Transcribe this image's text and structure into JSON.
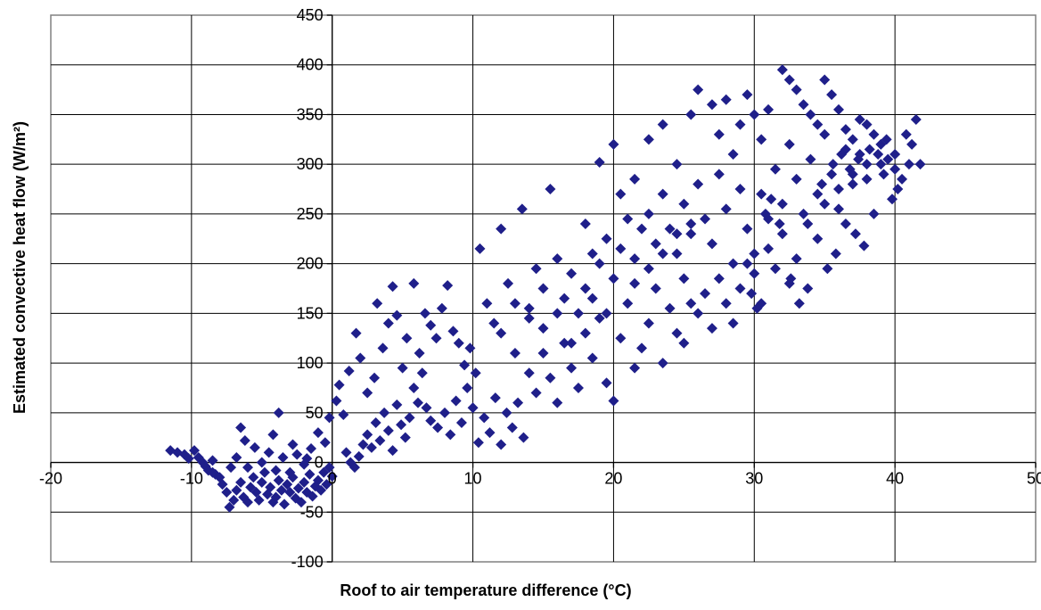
{
  "chart_data": {
    "type": "scatter",
    "xlabel": "Roof to air temperature difference (°C)",
    "ylabel": "Estimated convective heat flow (W/m²)",
    "xlim": [
      -20,
      50
    ],
    "ylim": [
      -100,
      450
    ],
    "x_ticks": [
      -20,
      -10,
      0,
      10,
      20,
      30,
      40,
      50
    ],
    "y_ticks": [
      -100,
      -50,
      0,
      50,
      100,
      150,
      200,
      250,
      300,
      350,
      400,
      450
    ],
    "x_tick_labels": [
      "-20",
      "-10",
      "0",
      "10",
      "20",
      "30",
      "40",
      "50"
    ],
    "y_tick_labels": [
      "-100",
      "-50",
      "0",
      "50",
      "100",
      "150",
      "200",
      "250",
      "300",
      "350",
      "400",
      "450"
    ],
    "grid": true,
    "colors": {
      "marker": "#1f1f8a",
      "grid": "#000000",
      "frame": "#808080"
    },
    "series": [
      {
        "marker": "diamond",
        "points": [
          [
            -11.5,
            12
          ],
          [
            -11.0,
            10
          ],
          [
            -10.5,
            8
          ],
          [
            -10.2,
            4
          ],
          [
            -9.8,
            12
          ],
          [
            -9.5,
            5
          ],
          [
            -9.2,
            0
          ],
          [
            -9.0,
            -4
          ],
          [
            -8.8,
            -8
          ],
          [
            -8.5,
            2
          ],
          [
            -8.3,
            -12
          ],
          [
            -8.0,
            -15
          ],
          [
            -7.8,
            -22
          ],
          [
            -7.5,
            -30
          ],
          [
            -7.3,
            -45
          ],
          [
            -7.0,
            -38
          ],
          [
            -6.8,
            -28
          ],
          [
            -6.5,
            -20
          ],
          [
            -6.3,
            -35
          ],
          [
            -6.0,
            -40
          ],
          [
            -5.8,
            -25
          ],
          [
            -5.6,
            -15
          ],
          [
            -5.4,
            -30
          ],
          [
            -5.2,
            -38
          ],
          [
            -5.0,
            -20
          ],
          [
            -4.8,
            -10
          ],
          [
            -4.6,
            -32
          ],
          [
            -4.4,
            -25
          ],
          [
            -4.2,
            -40
          ],
          [
            -4.0,
            -35
          ],
          [
            -3.8,
            -18
          ],
          [
            -3.6,
            -28
          ],
          [
            -3.4,
            -42
          ],
          [
            -3.2,
            -22
          ],
          [
            -3.0,
            -30
          ],
          [
            -2.8,
            -15
          ],
          [
            -2.6,
            -36
          ],
          [
            -2.4,
            -26
          ],
          [
            -2.2,
            -40
          ],
          [
            -2.0,
            -20
          ],
          [
            -1.8,
            -30
          ],
          [
            -1.6,
            -12
          ],
          [
            -1.4,
            -34
          ],
          [
            -1.2,
            -24
          ],
          [
            -1.0,
            -18
          ],
          [
            -0.8,
            -28
          ],
          [
            -0.6,
            -10
          ],
          [
            -0.4,
            -22
          ],
          [
            -0.2,
            -5
          ],
          [
            0.0,
            -14
          ],
          [
            -6.5,
            35
          ],
          [
            -6.2,
            22
          ],
          [
            -5.5,
            15
          ],
          [
            -4.5,
            10
          ],
          [
            -3.5,
            5
          ],
          [
            -2.5,
            8
          ],
          [
            -1.5,
            14
          ],
          [
            -1.0,
            30
          ],
          [
            -0.5,
            20
          ],
          [
            -0.2,
            45
          ],
          [
            -3.8,
            50
          ],
          [
            -4.2,
            28
          ],
          [
            -2.8,
            18
          ],
          [
            -1.8,
            4
          ],
          [
            -7.2,
            -5
          ],
          [
            -6.8,
            5
          ],
          [
            -8.5,
            -10
          ],
          [
            -5.0,
            0
          ],
          [
            -6.0,
            -5
          ],
          [
            -4.0,
            -8
          ],
          [
            -2.0,
            -2
          ],
          [
            -3.0,
            -10
          ],
          [
            0.3,
            62
          ],
          [
            0.5,
            78
          ],
          [
            0.8,
            48
          ],
          [
            1.0,
            10
          ],
          [
            1.3,
            0
          ],
          [
            1.6,
            -5
          ],
          [
            1.9,
            6
          ],
          [
            2.2,
            18
          ],
          [
            2.5,
            28
          ],
          [
            2.8,
            15
          ],
          [
            3.1,
            40
          ],
          [
            3.4,
            22
          ],
          [
            3.7,
            50
          ],
          [
            4.0,
            32
          ],
          [
            4.3,
            12
          ],
          [
            4.6,
            58
          ],
          [
            4.9,
            38
          ],
          [
            5.2,
            25
          ],
          [
            5.5,
            45
          ],
          [
            5.8,
            75
          ],
          [
            6.1,
            60
          ],
          [
            6.4,
            90
          ],
          [
            6.7,
            55
          ],
          [
            7.0,
            42
          ],
          [
            1.2,
            92
          ],
          [
            1.7,
            130
          ],
          [
            2.0,
            105
          ],
          [
            2.5,
            70
          ],
          [
            3.0,
            85
          ],
          [
            3.2,
            160
          ],
          [
            3.6,
            115
          ],
          [
            4.0,
            140
          ],
          [
            4.3,
            177
          ],
          [
            4.6,
            148
          ],
          [
            5.0,
            95
          ],
          [
            5.3,
            125
          ],
          [
            5.8,
            180
          ],
          [
            6.2,
            110
          ],
          [
            6.6,
            150
          ],
          [
            7.0,
            138
          ],
          [
            7.4,
            125
          ],
          [
            7.8,
            155
          ],
          [
            8.2,
            178
          ],
          [
            8.6,
            132
          ],
          [
            9.0,
            120
          ],
          [
            9.4,
            98
          ],
          [
            9.8,
            115
          ],
          [
            10.2,
            90
          ],
          [
            7.5,
            35
          ],
          [
            8.0,
            50
          ],
          [
            8.4,
            28
          ],
          [
            8.8,
            62
          ],
          [
            9.2,
            40
          ],
          [
            9.6,
            75
          ],
          [
            10.0,
            55
          ],
          [
            10.4,
            20
          ],
          [
            10.8,
            45
          ],
          [
            11.2,
            30
          ],
          [
            11.6,
            65
          ],
          [
            12.0,
            18
          ],
          [
            12.4,
            50
          ],
          [
            12.8,
            35
          ],
          [
            13.2,
            60
          ],
          [
            13.6,
            25
          ],
          [
            10.5,
            215
          ],
          [
            11.0,
            160
          ],
          [
            11.5,
            140
          ],
          [
            12.0,
            235
          ],
          [
            12.5,
            180
          ],
          [
            13.0,
            160
          ],
          [
            13.5,
            255
          ],
          [
            14.0,
            145
          ],
          [
            14.5,
            195
          ],
          [
            15.0,
            175
          ],
          [
            15.5,
            275
          ],
          [
            16.0,
            205
          ],
          [
            16.5,
            165
          ],
          [
            17.0,
            190
          ],
          [
            17.5,
            150
          ],
          [
            18.0,
            240
          ],
          [
            18.5,
            210
          ],
          [
            19.0,
            302
          ],
          [
            19.5,
            225
          ],
          [
            20.0,
            185
          ],
          [
            20.5,
            270
          ],
          [
            21.0,
            245
          ],
          [
            21.5,
            205
          ],
          [
            22.0,
            235
          ],
          [
            14.0,
            90
          ],
          [
            14.5,
            70
          ],
          [
            15.0,
            110
          ],
          [
            15.5,
            85
          ],
          [
            16.0,
            60
          ],
          [
            16.5,
            120
          ],
          [
            17.0,
            95
          ],
          [
            17.5,
            75
          ],
          [
            18.0,
            130
          ],
          [
            18.5,
            105
          ],
          [
            19.0,
            145
          ],
          [
            19.5,
            80
          ],
          [
            20.0,
            62
          ],
          [
            20.5,
            125
          ],
          [
            21.0,
            160
          ],
          [
            21.5,
            95
          ],
          [
            22.0,
            115
          ],
          [
            22.5,
            140
          ],
          [
            23.0,
            175
          ],
          [
            23.5,
            100
          ],
          [
            24.0,
            155
          ],
          [
            24.5,
            130
          ],
          [
            25.0,
            185
          ],
          [
            25.5,
            160
          ],
          [
            20.0,
            320
          ],
          [
            21.5,
            285
          ],
          [
            22.5,
            325
          ],
          [
            23.5,
            340
          ],
          [
            24.5,
            300
          ],
          [
            25.5,
            350
          ],
          [
            26.0,
            375
          ],
          [
            27.0,
            360
          ],
          [
            27.5,
            330
          ],
          [
            28.0,
            365
          ],
          [
            28.5,
            310
          ],
          [
            29.0,
            340
          ],
          [
            29.5,
            370
          ],
          [
            30.0,
            350
          ],
          [
            30.5,
            325
          ],
          [
            31.0,
            355
          ],
          [
            22.5,
            250
          ],
          [
            23.0,
            220
          ],
          [
            23.5,
            270
          ],
          [
            24.0,
            235
          ],
          [
            24.5,
            210
          ],
          [
            25.0,
            260
          ],
          [
            25.5,
            230
          ],
          [
            26.0,
            280
          ],
          [
            26.5,
            245
          ],
          [
            27.0,
            220
          ],
          [
            27.5,
            290
          ],
          [
            28.0,
            255
          ],
          [
            28.5,
            200
          ],
          [
            29.0,
            275
          ],
          [
            29.5,
            235
          ],
          [
            30.0,
            210
          ],
          [
            25.0,
            120
          ],
          [
            26.0,
            150
          ],
          [
            26.5,
            170
          ],
          [
            27.0,
            135
          ],
          [
            27.5,
            185
          ],
          [
            28.0,
            160
          ],
          [
            28.5,
            140
          ],
          [
            29.0,
            175
          ],
          [
            29.5,
            200
          ],
          [
            30.0,
            190
          ],
          [
            30.5,
            160
          ],
          [
            31.0,
            215
          ],
          [
            31.5,
            195
          ],
          [
            32.0,
            230
          ],
          [
            32.5,
            180
          ],
          [
            33.0,
            205
          ],
          [
            30.5,
            270
          ],
          [
            31.0,
            245
          ],
          [
            31.5,
            295
          ],
          [
            32.0,
            260
          ],
          [
            32.5,
            320
          ],
          [
            33.0,
            285
          ],
          [
            33.5,
            250
          ],
          [
            34.0,
            305
          ],
          [
            34.5,
            270
          ],
          [
            35.0,
            330
          ],
          [
            35.5,
            290
          ],
          [
            36.0,
            255
          ],
          [
            36.5,
            315
          ],
          [
            37.0,
            280
          ],
          [
            37.5,
            345
          ],
          [
            38.0,
            300
          ],
          [
            32.0,
            395
          ],
          [
            32.5,
            385
          ],
          [
            33.0,
            375
          ],
          [
            33.5,
            360
          ],
          [
            34.0,
            350
          ],
          [
            34.5,
            340
          ],
          [
            35.0,
            385
          ],
          [
            35.5,
            370
          ],
          [
            36.0,
            355
          ],
          [
            36.5,
            335
          ],
          [
            37.0,
            325
          ],
          [
            37.5,
            310
          ],
          [
            38.0,
            340
          ],
          [
            38.5,
            330
          ],
          [
            39.0,
            320
          ],
          [
            39.5,
            305
          ],
          [
            40.0,
            295
          ],
          [
            40.5,
            285
          ],
          [
            41.0,
            300
          ],
          [
            41.5,
            345
          ],
          [
            41.8,
            300
          ],
          [
            40.2,
            275
          ],
          [
            39.8,
            265
          ],
          [
            39.2,
            290
          ],
          [
            38.5,
            250
          ],
          [
            37.8,
            218
          ],
          [
            37.2,
            230
          ],
          [
            36.5,
            240
          ],
          [
            35.8,
            210
          ],
          [
            35.2,
            195
          ],
          [
            34.5,
            225
          ],
          [
            33.8,
            175
          ],
          [
            33.2,
            160
          ],
          [
            32.6,
            185
          ],
          [
            31.8,
            240
          ],
          [
            31.2,
            265
          ],
          [
            30.8,
            250
          ],
          [
            30.2,
            155
          ],
          [
            29.8,
            170
          ],
          [
            33.8,
            240
          ],
          [
            34.8,
            280
          ],
          [
            35.6,
            300
          ],
          [
            36.2,
            310
          ],
          [
            36.8,
            295
          ],
          [
            37.4,
            305
          ],
          [
            38.2,
            315
          ],
          [
            38.8,
            310
          ],
          [
            39.4,
            325
          ],
          [
            35.0,
            260
          ],
          [
            36.0,
            275
          ],
          [
            37.0,
            290
          ],
          [
            38.0,
            285
          ],
          [
            39.0,
            300
          ],
          [
            40.0,
            310
          ],
          [
            40.8,
            330
          ],
          [
            41.2,
            320
          ],
          [
            18.0,
            175
          ],
          [
            19.0,
            200
          ],
          [
            20.5,
            215
          ],
          [
            21.5,
            180
          ],
          [
            22.5,
            195
          ],
          [
            23.5,
            210
          ],
          [
            24.5,
            230
          ],
          [
            25.5,
            240
          ],
          [
            12.0,
            130
          ],
          [
            13.0,
            110
          ],
          [
            14.0,
            155
          ],
          [
            15.0,
            135
          ],
          [
            16.0,
            150
          ],
          [
            17.0,
            120
          ],
          [
            18.5,
            165
          ],
          [
            19.5,
            150
          ]
        ]
      }
    ]
  }
}
